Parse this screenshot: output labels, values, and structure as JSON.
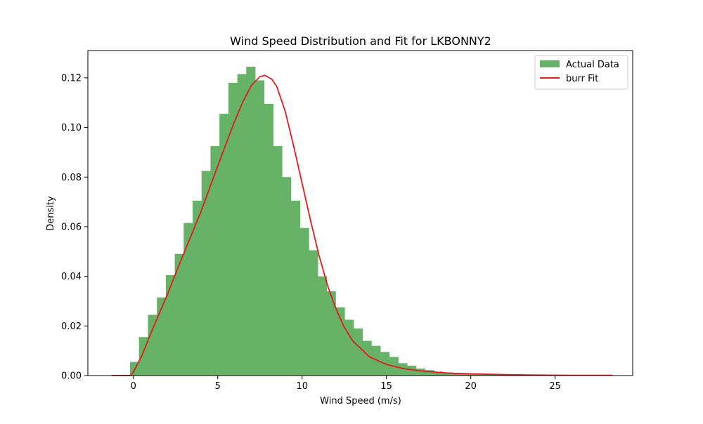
{
  "chart_data": {
    "type": "bar",
    "title": "Wind Speed Distribution and Fit for LKBONNY2",
    "xlabel": "Wind Speed (m/s)",
    "ylabel": "Density",
    "xlim": [
      -2.7,
      29.6
    ],
    "ylim": [
      0,
      0.131
    ],
    "xticks": [
      0,
      5,
      10,
      15,
      20,
      25
    ],
    "xtick_labels": [
      "0",
      "5",
      "10",
      "15",
      "20",
      "25"
    ],
    "yticks": [
      0.0,
      0.02,
      0.04,
      0.06,
      0.08,
      0.1,
      0.12
    ],
    "ytick_labels": [
      "0.00",
      "0.02",
      "0.04",
      "0.06",
      "0.08",
      "0.10",
      "0.12"
    ],
    "grid": false,
    "legend_position": "top-right",
    "series": [
      {
        "name": "Actual Data",
        "type": "histogram",
        "color": "#66b266",
        "bin_width": 0.53,
        "bin_starts": [
          -1.26,
          -0.73,
          -0.2,
          0.33,
          0.86,
          1.39,
          1.92,
          2.45,
          2.98,
          3.51,
          4.04,
          4.57,
          5.1,
          5.63,
          6.16,
          6.69,
          7.22,
          7.75,
          8.28,
          8.81,
          9.34,
          9.87,
          10.4,
          10.93,
          11.46,
          11.99,
          12.52,
          13.05,
          13.58,
          14.11,
          14.64,
          15.17,
          15.7,
          16.23,
          16.76,
          17.29,
          17.82,
          18.35,
          18.88,
          19.41,
          19.94,
          20.47,
          21.0,
          21.53,
          22.06,
          22.59,
          23.12,
          23.65,
          24.18,
          24.71,
          25.24,
          25.77,
          26.3,
          26.83,
          27.36,
          27.89
        ],
        "values": [
          0.0,
          0.0003,
          0.0055,
          0.0155,
          0.0245,
          0.0315,
          0.0405,
          0.049,
          0.0615,
          0.0705,
          0.0825,
          0.0925,
          0.1055,
          0.118,
          0.1215,
          0.1245,
          0.119,
          0.1095,
          0.0925,
          0.08,
          0.0705,
          0.0595,
          0.0505,
          0.04,
          0.034,
          0.0275,
          0.0225,
          0.019,
          0.014,
          0.012,
          0.0095,
          0.0075,
          0.005,
          0.004,
          0.0028,
          0.0022,
          0.0016,
          0.0012,
          0.0009,
          0.0007,
          0.0006,
          0.0005,
          0.0004,
          0.0003,
          0.0002,
          0.0002,
          0.0001,
          0.0001,
          0.0001,
          0.0001,
          0.0001,
          0.0,
          0.0,
          0.0,
          0.0,
          0.0
        ]
      },
      {
        "name": "burr Fit",
        "type": "line",
        "color": "#e41a1c",
        "x": [
          -1.3,
          -0.15,
          0,
          0.5,
          1,
          2,
          3,
          4,
          5,
          6,
          6.5,
          7,
          7.5,
          7.8,
          8.2,
          8.5,
          9,
          9.5,
          10,
          10.5,
          11,
          11.5,
          12,
          12.5,
          13,
          14,
          15,
          16,
          17,
          18,
          19,
          20,
          22,
          24,
          26,
          28.4
        ],
        "y": [
          0.0,
          0.0,
          0.0015,
          0.008,
          0.0165,
          0.0325,
          0.0495,
          0.066,
          0.0845,
          0.1025,
          0.1105,
          0.117,
          0.1205,
          0.121,
          0.1195,
          0.1165,
          0.1065,
          0.0925,
          0.0775,
          0.0625,
          0.0485,
          0.0365,
          0.027,
          0.0195,
          0.014,
          0.0075,
          0.0045,
          0.0028,
          0.0019,
          0.0013,
          0.0009,
          0.0007,
          0.0004,
          0.0002,
          0.0001,
          0.0001
        ]
      }
    ]
  }
}
